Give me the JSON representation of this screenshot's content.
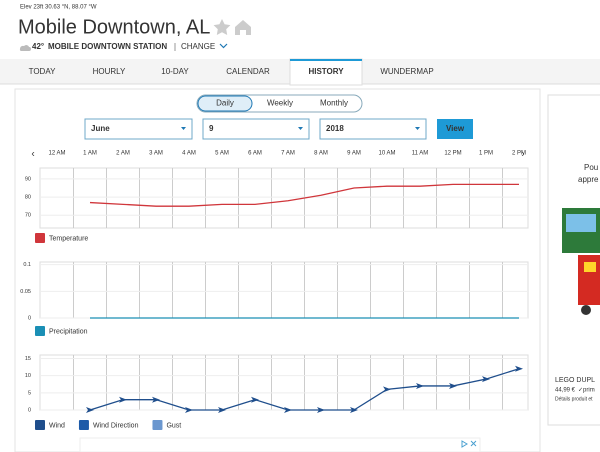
{
  "header": {
    "elevation": "Elev 23ft 30.63 °N, 88.07 °W",
    "title": "Mobile Downtown, AL",
    "temperature": "42°",
    "station": "MOBILE DOWNTOWN STATION",
    "change": "CHANGE"
  },
  "tabs": [
    "TODAY",
    "HOURLY",
    "10-DAY",
    "CALENDAR",
    "HISTORY",
    "WUNDERMAP"
  ],
  "active_tab": 4,
  "period_toggle": [
    "Daily",
    "Weekly",
    "Monthly"
  ],
  "date_form": {
    "month": "June",
    "day": "9",
    "year": "2018",
    "button": "View"
  },
  "ad": {
    "lines": [
      "Pou",
      "appre"
    ],
    "product": "LEGO DUPL",
    "price": "44,99 €",
    "prime": "✓prim",
    "details": "Détails produit et"
  },
  "chart_data": [
    {
      "type": "line",
      "categories": [
        "12 AM",
        "1 AM",
        "2 AM",
        "3 AM",
        "4 AM",
        "5 AM",
        "6 AM",
        "7 AM",
        "8 AM",
        "9 AM",
        "10 AM",
        "11 AM",
        "12 PM",
        "1 PM",
        "2 PM"
      ],
      "series": [
        {
          "name": "Temperature",
          "color": "#d0363b",
          "values": [
            null,
            77,
            76,
            75,
            75,
            76,
            76,
            78,
            81,
            85,
            86,
            86,
            87,
            87,
            87
          ]
        }
      ],
      "ylim": [
        63,
        96
      ],
      "yticks": [
        70,
        80,
        90
      ],
      "grid": true
    },
    {
      "type": "line",
      "series": [
        {
          "name": "Precipitation",
          "color": "#1a8fb5",
          "values": [
            null,
            0,
            0,
            0,
            0,
            0,
            0,
            0,
            0,
            0,
            0,
            0,
            0,
            0,
            0
          ]
        }
      ],
      "ylim": [
        0,
        0.105
      ],
      "yticks": [
        0,
        0.05,
        0.1
      ],
      "grid": true
    },
    {
      "type": "line",
      "series": [
        {
          "name": "Wind",
          "color": "#1f4e8c",
          "values": [
            null,
            0,
            3,
            3,
            0,
            0,
            3,
            0,
            0,
            0,
            6,
            7,
            7,
            9,
            12
          ]
        },
        {
          "name": "Wind Direction",
          "color": "#1d5aa8"
        },
        {
          "name": "Gust",
          "color": "#6b97cf"
        }
      ],
      "ylim": [
        0,
        16
      ],
      "yticks": [
        0,
        5,
        10,
        15
      ],
      "grid": true
    }
  ]
}
